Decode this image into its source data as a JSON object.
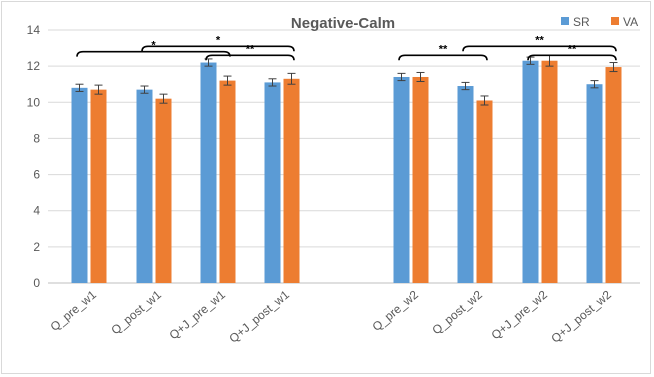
{
  "chart_data": {
    "type": "bar",
    "title": "Negative-Calm",
    "xlabel": "",
    "ylabel": "",
    "ylim": [
      0,
      14
    ],
    "yticks": [
      0,
      2,
      4,
      6,
      8,
      10,
      12,
      14
    ],
    "grid": true,
    "legend_position": "top-right",
    "categories": [
      "Q_pre_w1",
      "Q_post_w1",
      "Q+J_pre_w1",
      "Q+J_post_w1",
      "Q_pre_w2",
      "Q_post_w2",
      "Q+J_pre_w2",
      "Q+J_post_w2"
    ],
    "series": [
      {
        "name": "SR",
        "color": "#5b9bd5",
        "values": [
          10.8,
          10.7,
          12.2,
          11.1,
          11.4,
          10.9,
          12.3,
          11.0
        ],
        "errors": [
          0.2,
          0.2,
          0.2,
          0.2,
          0.2,
          0.2,
          0.2,
          0.2
        ]
      },
      {
        "name": "VA",
        "color": "#ed7d31",
        "values": [
          10.7,
          10.2,
          11.2,
          11.3,
          11.4,
          10.1,
          12.3,
          11.95
        ],
        "errors": [
          0.25,
          0.25,
          0.25,
          0.3,
          0.25,
          0.25,
          0.3,
          0.25
        ]
      }
    ],
    "significance": [
      {
        "from": 0,
        "to": 2,
        "label": "*",
        "y": 12.8
      },
      {
        "from": 1,
        "to": 3,
        "label": "*",
        "y": 13.1
      },
      {
        "from": 2,
        "to": 3,
        "label": "**",
        "y": 12.6
      },
      {
        "from": 4,
        "to": 5,
        "label": "**",
        "y": 12.6
      },
      {
        "from": 5,
        "to": 7,
        "label": "**",
        "y": 13.1
      },
      {
        "from": 6,
        "to": 7,
        "label": "**",
        "y": 12.6
      }
    ]
  }
}
